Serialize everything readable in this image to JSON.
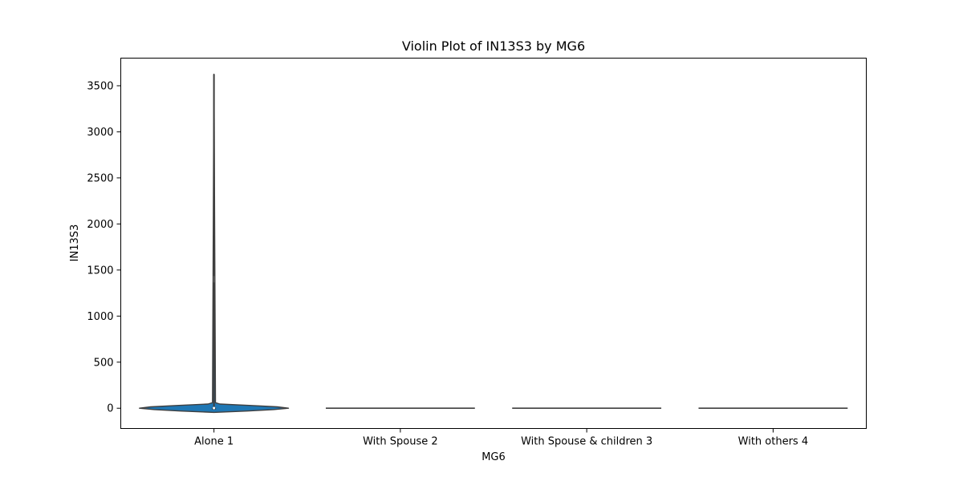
{
  "chart_data": {
    "type": "violin",
    "title": "Violin Plot of IN13S3 by MG6",
    "xlabel": "MG6",
    "ylabel": "IN13S3",
    "categories": [
      "Alone 1",
      "With Spouse 2",
      "With Spouse & children 3",
      "With others 4"
    ],
    "ylim": [
      -220,
      3800
    ],
    "yticks": [
      0,
      500,
      1000,
      1500,
      2000,
      2500,
      3000,
      3500
    ],
    "grid": false,
    "legend": "none",
    "violins": [
      {
        "category": "Alone 1",
        "min": 0,
        "max": 3625,
        "median": 2,
        "q1": 0,
        "q3": 5,
        "outlier_mark": 1400,
        "density": [
          {
            "y": -45,
            "w": 0.0
          },
          {
            "y": -30,
            "w": 0.45
          },
          {
            "y": -15,
            "w": 0.8
          },
          {
            "y": 0,
            "w": 1.0
          },
          {
            "y": 15,
            "w": 0.85
          },
          {
            "y": 30,
            "w": 0.5
          },
          {
            "y": 45,
            "w": 0.08
          },
          {
            "y": 60,
            "w": 0.02
          },
          {
            "y": 3625,
            "w": 0.0
          }
        ]
      },
      {
        "category": "With Spouse 2",
        "min": 0,
        "max": 0,
        "median": 0,
        "flat": true
      },
      {
        "category": "With Spouse & children 3",
        "min": 0,
        "max": 0,
        "median": 0,
        "flat": true
      },
      {
        "category": "With others 4",
        "min": 0,
        "max": 0,
        "median": 0,
        "flat": true
      }
    ],
    "colors": {
      "violin_fill": "#1f77b4",
      "edge": "#3f3f3f",
      "axis": "#000000"
    }
  }
}
